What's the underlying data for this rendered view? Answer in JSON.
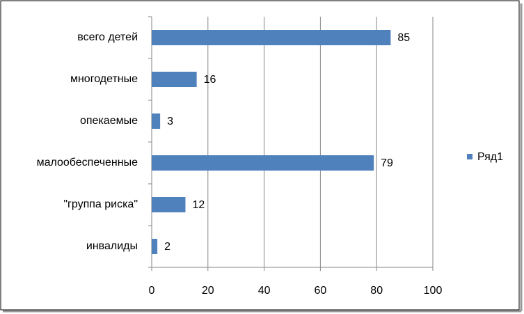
{
  "chart_data": {
    "type": "bar",
    "orientation": "horizontal",
    "categories": [
      "всего детей",
      "многодетные",
      "опекаемые",
      "малообеспеченные",
      "\"группа риска\"",
      "инвалиды"
    ],
    "series": [
      {
        "name": "Ряд1",
        "color": "#4f81bd",
        "values": [
          85,
          16,
          3,
          79,
          12,
          2
        ]
      }
    ],
    "xlim": [
      0,
      100
    ],
    "xticks": [
      0,
      20,
      40,
      60,
      80,
      100
    ],
    "grid": true,
    "legend": "right",
    "data_labels": true
  }
}
